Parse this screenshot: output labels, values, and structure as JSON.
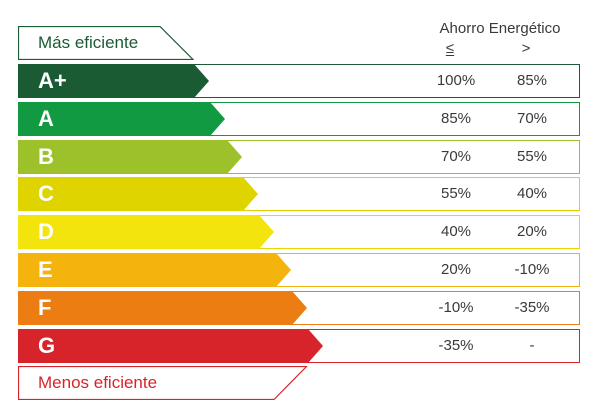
{
  "header": {
    "title": "Ahorro Energético",
    "col_le": "≤",
    "col_gt": ">"
  },
  "top_tag": {
    "label": "Más eficiente",
    "color": "#1a5b34"
  },
  "bottom_tag": {
    "label": "Menos eficiente",
    "color": "#d7242a"
  },
  "rows": [
    {
      "letter": "A+",
      "le": "100%",
      "gt": "85%",
      "color": "#1a5b34",
      "frame": "#1a5b34"
    },
    {
      "letter": "A",
      "le": "85%",
      "gt": "70%",
      "color": "#129a43",
      "frame": "#129a43"
    },
    {
      "letter": "B",
      "le": "70%",
      "gt": "55%",
      "color": "#9dc12a",
      "frame": "#9dc12a"
    },
    {
      "letter": "C",
      "le": "55%",
      "gt": "40%",
      "color": "#e0d400",
      "frame": "#e0d400"
    },
    {
      "letter": "D",
      "le": "40%",
      "gt": "20%",
      "color": "#f4e40d",
      "frame": "#e8d800"
    },
    {
      "letter": "E",
      "le": "20%",
      "gt": "-10%",
      "color": "#f5b30e",
      "frame": "#f5b30e"
    },
    {
      "letter": "F",
      "le": "-10%",
      "gt": "-35%",
      "color": "#eb7d12",
      "frame": "#eb7d12"
    },
    {
      "letter": "G",
      "le": "-35%",
      "gt": "-",
      "color": "#d7242a",
      "frame": "#d7242a"
    }
  ]
}
